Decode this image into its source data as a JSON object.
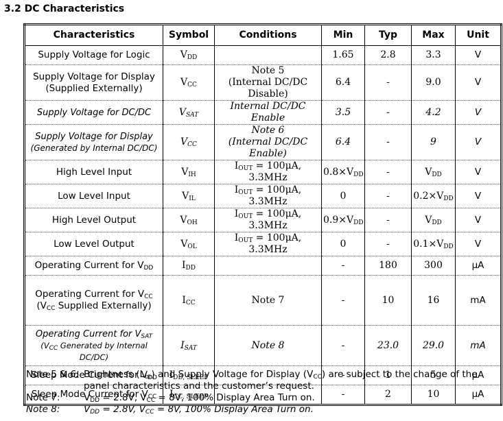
{
  "header": {
    "title": "3.2 DC Characteristics"
  },
  "table": {
    "columns": [
      "Characteristics",
      "Symbol",
      "Conditions",
      "Min",
      "Typ",
      "Max",
      "Unit"
    ],
    "rows": [
      {
        "cells": [
          "Supply Voltage for Logic",
          [
            [
              "V",
              {
                "sub": "DD"
              }
            ]
          ],
          null,
          "1.65",
          "2.8",
          "3.3",
          "V"
        ]
      },
      {
        "cells": [
          [
            "Supply Voltage for Display",
            "(Supplied Externally)"
          ],
          [
            [
              "V",
              {
                "sub": "CC"
              }
            ]
          ],
          [
            "Note 5",
            "(Internal DC/DC Disable)"
          ],
          "6.4",
          "-",
          "9.0",
          "V"
        ]
      },
      {
        "italic": true,
        "cells": [
          "Supply Voltage for DC/DC",
          [
            [
              "V",
              {
                "sub": "SAT"
              }
            ]
          ],
          "Internal DC/DC Enable",
          "3.5",
          "-",
          "4.2",
          "V"
        ]
      },
      {
        "italic": true,
        "cells": [
          [
            "Supply Voltage for Display",
            "(Generated by Internal DC/DC)"
          ],
          [
            [
              "V",
              {
                "sub": "CC"
              }
            ]
          ],
          [
            "Note 6",
            "(Internal DC/DC Enable)"
          ],
          "6.4",
          "-",
          "9",
          "V"
        ]
      },
      {
        "cells": [
          "High Level Input",
          [
            [
              "V",
              {
                "sub": "IH"
              }
            ]
          ],
          [
            [
              "I",
              {
                "sub": "OUT"
              },
              " = 100μA, 3.3MHz"
            ]
          ],
          [
            [
              "0.8×V",
              {
                "sub": "DD"
              }
            ]
          ],
          "-",
          [
            [
              "V",
              {
                "sub": "DD"
              }
            ]
          ],
          "V"
        ]
      },
      {
        "cells": [
          "Low Level Input",
          [
            [
              "V",
              {
                "sub": "IL"
              }
            ]
          ],
          [
            [
              "I",
              {
                "sub": "OUT"
              },
              " = 100μA, 3.3MHz"
            ]
          ],
          "0",
          "-",
          [
            [
              "0.2×V",
              {
                "sub": "DD"
              }
            ]
          ],
          "V"
        ]
      },
      {
        "cells": [
          "High Level Output",
          [
            [
              "V",
              {
                "sub": "OH"
              }
            ]
          ],
          [
            [
              "I",
              {
                "sub": "OUT"
              },
              " = 100μA, 3.3MHz"
            ]
          ],
          [
            [
              "0.9×V",
              {
                "sub": "DD"
              }
            ]
          ],
          "-",
          [
            [
              "V",
              {
                "sub": "DD"
              }
            ]
          ],
          "V"
        ]
      },
      {
        "cells": [
          "Low Level Output",
          [
            [
              "V",
              {
                "sub": "OL"
              }
            ]
          ],
          [
            [
              "I",
              {
                "sub": "OUT"
              },
              " = 100μA, 3.3MHz"
            ]
          ],
          "0",
          "-",
          [
            [
              "0.1×V",
              {
                "sub": "DD"
              }
            ]
          ],
          "V"
        ]
      },
      {
        "cells": [
          [
            [
              "Operating Current for V",
              {
                "sub": "DD"
              }
            ]
          ],
          [
            [
              "I",
              {
                "sub": "DD"
              }
            ]
          ],
          null,
          "-",
          "180",
          "300",
          "μA"
        ]
      },
      {
        "cells": [
          [
            [
              "Operating Current for V",
              {
                "sub": "CC"
              }
            ],
            [
              "(V",
              {
                "sub": "CC"
              },
              " Supplied Externally)"
            ]
          ],
          [
            [
              "I",
              {
                "sub": "CC"
              }
            ]
          ],
          "Note 7",
          "-",
          "10",
          "16",
          "mA"
        ]
      },
      {
        "italic": true,
        "cells": [
          [
            [
              "Operating Current for V",
              {
                "sub": "SAT"
              }
            ],
            [
              "(V",
              {
                "sub": "CC"
              },
              " Generated by Internal DC/DC)"
            ]
          ],
          [
            [
              "I",
              {
                "sub": "SAT"
              }
            ]
          ],
          "Note 8",
          "-",
          "23.0",
          "29.0",
          "mA"
        ]
      },
      {
        "cells": [
          [
            [
              "Sleep Mode Current for V",
              {
                "sub": "DD"
              }
            ]
          ],
          [
            [
              "I",
              {
                "sub": "DD, SLEEP"
              }
            ]
          ],
          null,
          "-",
          "1",
          "5",
          "μA"
        ]
      },
      {
        "cells": [
          [
            [
              "Sleep Mode Current for V",
              {
                "sub": "CC"
              }
            ]
          ],
          [
            [
              "I",
              {
                "sub": "CC, SLEEP"
              }
            ]
          ],
          null,
          "-",
          "2",
          "10",
          "μA"
        ]
      }
    ]
  },
  "notes": [
    {
      "label": [
        "Note 5 & ",
        {
          "i": "6:"
        }
      ],
      "text": [
        "Brightness (L",
        {
          "sub": "br"
        },
        ") and Supply Voltage for Display (V",
        {
          "sub": "CC"
        },
        ") are subject to the change of the panel characteristics and the customer’s request."
      ]
    },
    {
      "label": [
        "Note 7:"
      ],
      "text": [
        "V",
        {
          "sub": "DD"
        },
        " = 2.8V, V",
        {
          "sub": "CC"
        },
        " = 8V, 100% Display Area Turn on."
      ]
    },
    {
      "italic": true,
      "label": [
        "Note 8:"
      ],
      "text": [
        "V",
        {
          "sub": "DD"
        },
        " = 2.8V, V",
        {
          "sub": "CC"
        },
        " = 8V, 100% Display Area Turn on."
      ]
    }
  ]
}
